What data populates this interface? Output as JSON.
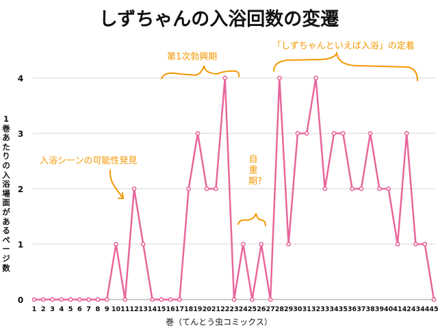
{
  "chart_data": {
    "type": "line",
    "title": "しずちゃんの入浴回数の変遷",
    "xlabel": "巻（てんとう虫コミックス）",
    "ylabel": "1巻あたりの入浴場面があるページ数",
    "x": [
      1,
      2,
      3,
      4,
      5,
      6,
      7,
      8,
      9,
      10,
      11,
      12,
      13,
      14,
      15,
      16,
      17,
      18,
      19,
      20,
      21,
      22,
      23,
      24,
      25,
      26,
      27,
      28,
      29,
      30,
      31,
      32,
      33,
      34,
      35,
      36,
      37,
      38,
      39,
      40,
      41,
      42,
      43,
      44,
      45
    ],
    "values": [
      0,
      0,
      0,
      0,
      0,
      0,
      0,
      0,
      0,
      1,
      0,
      2,
      1,
      0,
      0,
      0,
      0,
      2,
      3,
      2,
      2,
      4,
      0,
      1,
      0,
      1,
      0,
      4,
      1,
      3,
      3,
      4,
      2,
      3,
      3,
      2,
      2,
      3,
      2,
      2,
      1,
      3,
      1,
      1,
      0
    ],
    "ylim": [
      0,
      4
    ],
    "yticks": [
      0,
      1,
      2,
      3,
      4
    ],
    "grid": true,
    "line_color": "#e8659a",
    "annotation_color": "#f39800",
    "annotations": [
      {
        "text": "入浴シーンの可能性発見",
        "x": 12
      },
      {
        "text": "第1次勃興期",
        "x_range": [
          15,
          23
        ]
      },
      {
        "text": "自重期？",
        "x_range": [
          23,
          27
        ]
      },
      {
        "text": "「しずちゃんといえば入浴」の定着",
        "x_range": [
          28,
          43
        ]
      }
    ]
  }
}
